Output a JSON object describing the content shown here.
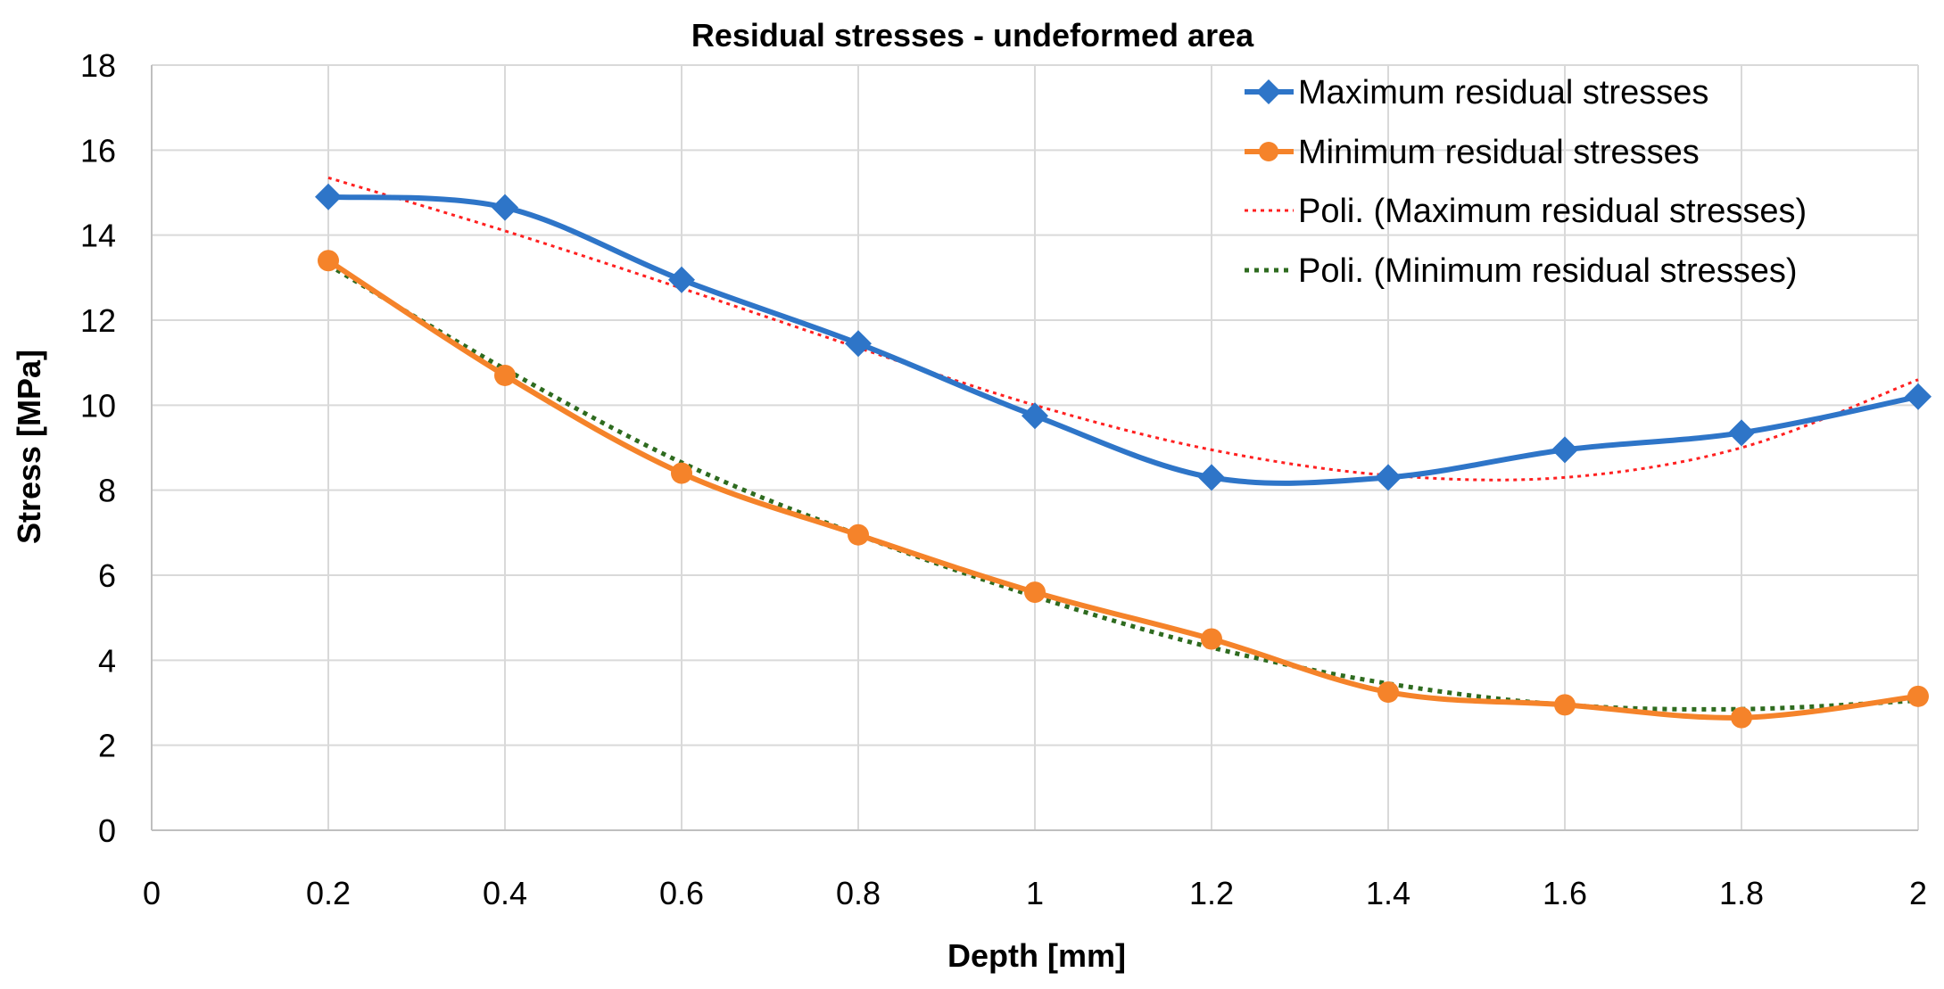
{
  "chart_data": {
    "type": "line",
    "title": "Residual stresses - undeformed area",
    "xlabel": "Depth [mm]",
    "ylabel": "Stress [MPa]",
    "xlim": [
      0,
      2
    ],
    "ylim": [
      0,
      18
    ],
    "x_ticks": [
      "0",
      "0.2",
      "0.4",
      "0.6",
      "0.8",
      "1",
      "1.2",
      "1.4",
      "1.6",
      "1.8",
      "2"
    ],
    "y_ticks": [
      "0",
      "2",
      "4",
      "6",
      "8",
      "10",
      "12",
      "14",
      "16",
      "18"
    ],
    "x_tick_values": [
      0,
      0.2,
      0.4,
      0.6,
      0.8,
      1.0,
      1.2,
      1.4,
      1.6,
      1.8,
      2.0
    ],
    "y_tick_values": [
      0,
      2,
      4,
      6,
      8,
      10,
      12,
      14,
      16,
      18
    ],
    "grid": "vertical and horizontal",
    "legend_position": "top-right",
    "x": [
      0.2,
      0.4,
      0.6,
      0.8,
      1.0,
      1.2,
      1.4,
      1.6,
      1.8,
      2.0
    ],
    "series": [
      {
        "name": "Maximum residual stresses",
        "marker": "diamond",
        "color": "#2E75C8",
        "values": [
          14.9,
          14.65,
          12.95,
          11.45,
          9.75,
          8.3,
          8.3,
          8.95,
          9.35,
          10.2
        ]
      },
      {
        "name": "Minimum residual stresses",
        "marker": "circle",
        "color": "#F5832A",
        "values": [
          13.4,
          10.7,
          8.4,
          6.95,
          5.6,
          4.5,
          3.25,
          2.95,
          2.65,
          3.15
        ]
      }
    ],
    "trendlines": [
      {
        "name": "Poli. (Maximum residual stresses)",
        "style": "dotted",
        "color": "#FF2020",
        "x": [
          0.2,
          0.4,
          0.6,
          0.8,
          1.0,
          1.2,
          1.4,
          1.6,
          1.8,
          2.0
        ],
        "values": [
          15.35,
          14.1,
          12.75,
          11.35,
          10.0,
          8.95,
          8.35,
          8.3,
          9.0,
          10.6
        ]
      },
      {
        "name": "Poli. (Minimum residual stresses)",
        "style": "dotted",
        "color": "#2E6B1F",
        "x": [
          0.2,
          0.4,
          0.6,
          0.8,
          1.0,
          1.2,
          1.4,
          1.6,
          1.8,
          2.0
        ],
        "values": [
          13.3,
          10.85,
          8.65,
          6.95,
          5.5,
          4.3,
          3.45,
          2.95,
          2.85,
          3.05
        ]
      }
    ]
  }
}
